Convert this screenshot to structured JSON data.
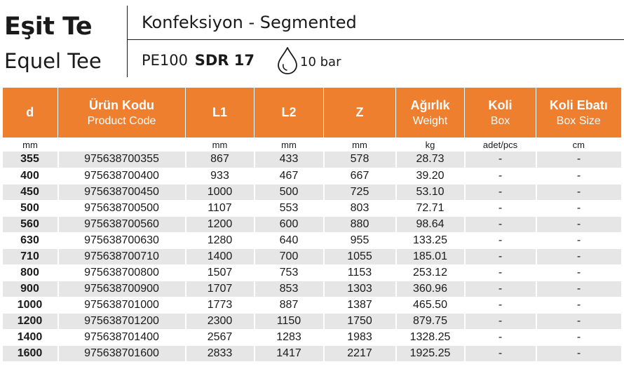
{
  "header": {
    "title": "Eşit Te",
    "subtitle": "Equel Tee",
    "category": "Konfeksiyon - Segmented",
    "material": "PE100",
    "sdr": "SDR 17",
    "pressure": "10 bar",
    "pressure_icon": "water-drop-icon"
  },
  "colors": {
    "accent": "#ee7f2f",
    "row_shade": "#e6e6e6"
  },
  "table": {
    "columns": [
      {
        "main": "d",
        "sub": ""
      },
      {
        "main": "Ürün Kodu",
        "sub": "Product Code"
      },
      {
        "main": "L1",
        "sub": ""
      },
      {
        "main": "L2",
        "sub": ""
      },
      {
        "main": "Z",
        "sub": ""
      },
      {
        "main": "Ağırlık",
        "sub": "Weight"
      },
      {
        "main": "Koli",
        "sub": "Box"
      },
      {
        "main": "Koli Ebatı",
        "sub": "Box Size"
      }
    ],
    "units": [
      "mm",
      "",
      "mm",
      "mm",
      "mm",
      "kg",
      "adet/pcs",
      "cm"
    ],
    "rows": [
      [
        "355",
        "975638700355",
        "867",
        "433",
        "578",
        "28.73",
        "-",
        "-"
      ],
      [
        "400",
        "975638700400",
        "933",
        "467",
        "667",
        "39.20",
        "-",
        "-"
      ],
      [
        "450",
        "975638700450",
        "1000",
        "500",
        "725",
        "53.10",
        "-",
        "-"
      ],
      [
        "500",
        "975638700500",
        "1107",
        "553",
        "803",
        "72.71",
        "-",
        "-"
      ],
      [
        "560",
        "975638700560",
        "1200",
        "600",
        "880",
        "98.64",
        "-",
        "-"
      ],
      [
        "630",
        "975638700630",
        "1280",
        "640",
        "955",
        "133.25",
        "-",
        "-"
      ],
      [
        "710",
        "975638700710",
        "1400",
        "700",
        "1055",
        "185.01",
        "-",
        "-"
      ],
      [
        "800",
        "975638700800",
        "1507",
        "753",
        "1153",
        "253.12",
        "-",
        "-"
      ],
      [
        "900",
        "975638700900",
        "1707",
        "853",
        "1303",
        "360.96",
        "-",
        "-"
      ],
      [
        "1000",
        "975638701000",
        "1773",
        "887",
        "1387",
        "465.50",
        "-",
        "-"
      ],
      [
        "1200",
        "975638701200",
        "2300",
        "1150",
        "1750",
        "879.75",
        "-",
        "-"
      ],
      [
        "1400",
        "975638701400",
        "2567",
        "1283",
        "1983",
        "1328.25",
        "-",
        "-"
      ],
      [
        "1600",
        "975638701600",
        "2833",
        "1417",
        "2217",
        "1925.25",
        "-",
        "-"
      ]
    ]
  }
}
